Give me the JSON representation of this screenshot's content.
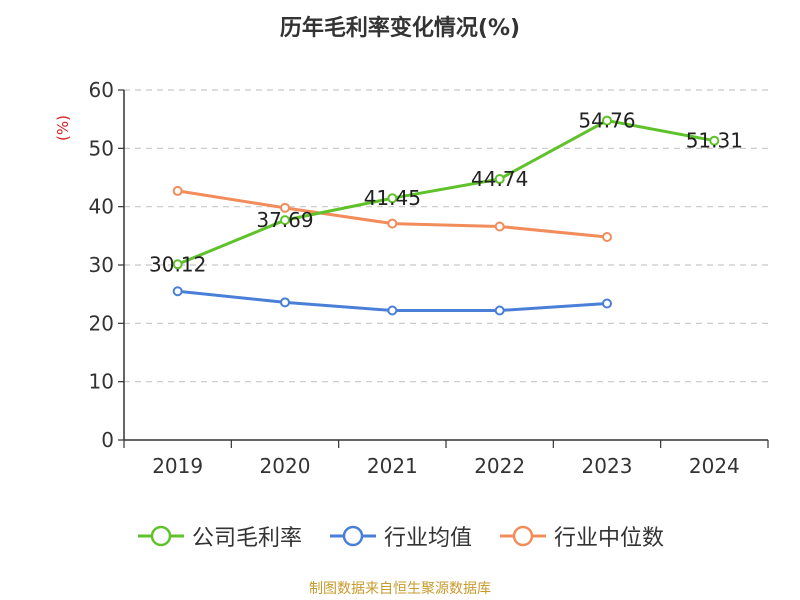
{
  "chart_data": {
    "type": "line",
    "title": "历年毛利率变化情况(%)",
    "ylabel": "(%)",
    "ylim": [
      0,
      60
    ],
    "yticks": [
      0,
      10,
      20,
      30,
      40,
      50,
      60
    ],
    "categories": [
      "2019",
      "2020",
      "2021",
      "2022",
      "2023",
      "2024"
    ],
    "grid": true,
    "legend_position": "bottom",
    "series": [
      {
        "name": "公司毛利率",
        "color": "#5fc22a",
        "values": [
          30.12,
          37.69,
          41.45,
          44.74,
          54.76,
          51.31
        ],
        "data_labels": [
          "30.12",
          "37.69",
          "41.45",
          "44.74",
          "54.76",
          "51.31"
        ]
      },
      {
        "name": "行业均值",
        "color": "#4a7fd8",
        "values": [
          25.5,
          23.6,
          22.2,
          22.2,
          23.4,
          null
        ]
      },
      {
        "name": "行业中位数",
        "color": "#f28c5a",
        "values": [
          42.7,
          39.8,
          37.1,
          36.6,
          34.8,
          null
        ]
      }
    ]
  },
  "source": "制图数据来自恒生聚源数据库"
}
